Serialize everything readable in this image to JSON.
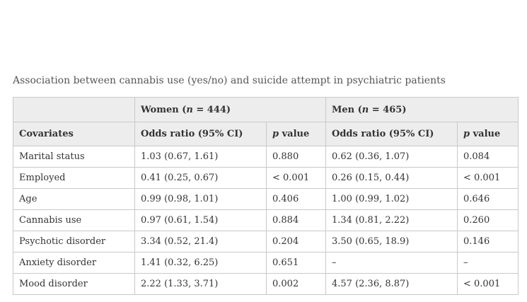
{
  "caption": "Association between cannabis use (yes/no) and suicide attempt in psychiatric patients",
  "groups": {
    "women_label": "Women (",
    "women_n": "n",
    "women_rest": " = 444)",
    "men_label": "Men (",
    "men_n": "n",
    "men_rest": " = 465)"
  },
  "columns": {
    "covariates": "Covariates",
    "odds_ratio": "Odds ratio (95% CI)",
    "p_italic": "p",
    "p_rest": " value"
  },
  "rows": [
    {
      "covariate": "Marital status",
      "women_or": "1.03 (0.67, 1.61)",
      "women_p": "0.880",
      "men_or": "0.62 (0.36, 1.07)",
      "men_p": "0.084"
    },
    {
      "covariate": "Employed",
      "women_or": "0.41 (0.25, 0.67)",
      "women_p": "< 0.001",
      "men_or": "0.26 (0.15, 0.44)",
      "men_p": "< 0.001"
    },
    {
      "covariate": "Age",
      "women_or": "0.99 (0.98, 1.01)",
      "women_p": "0.406",
      "men_or": "1.00 (0.99, 1.02)",
      "men_p": "0.646"
    },
    {
      "covariate": "Cannabis use",
      "women_or": "0.97 (0.61, 1.54)",
      "women_p": "0.884",
      "men_or": "1.34 (0.81, 2.22)",
      "men_p": "0.260"
    },
    {
      "covariate": "Psychotic disorder",
      "women_or": "3.34 (0.52, 21.4)",
      "women_p": "0.204",
      "men_or": "3.50 (0.65, 18.9)",
      "men_p": "0.146"
    },
    {
      "covariate": "Anxiety disorder",
      "women_or": "1.41 (0.32, 6.25)",
      "women_p": "0.651",
      "men_or": "–",
      "men_p": "–"
    },
    {
      "covariate": "Mood disorder",
      "women_or": "2.22 (1.33, 3.71)",
      "women_p": "0.002",
      "men_or": "4.57 (2.36, 8.87)",
      "men_p": "< 0.001"
    }
  ]
}
